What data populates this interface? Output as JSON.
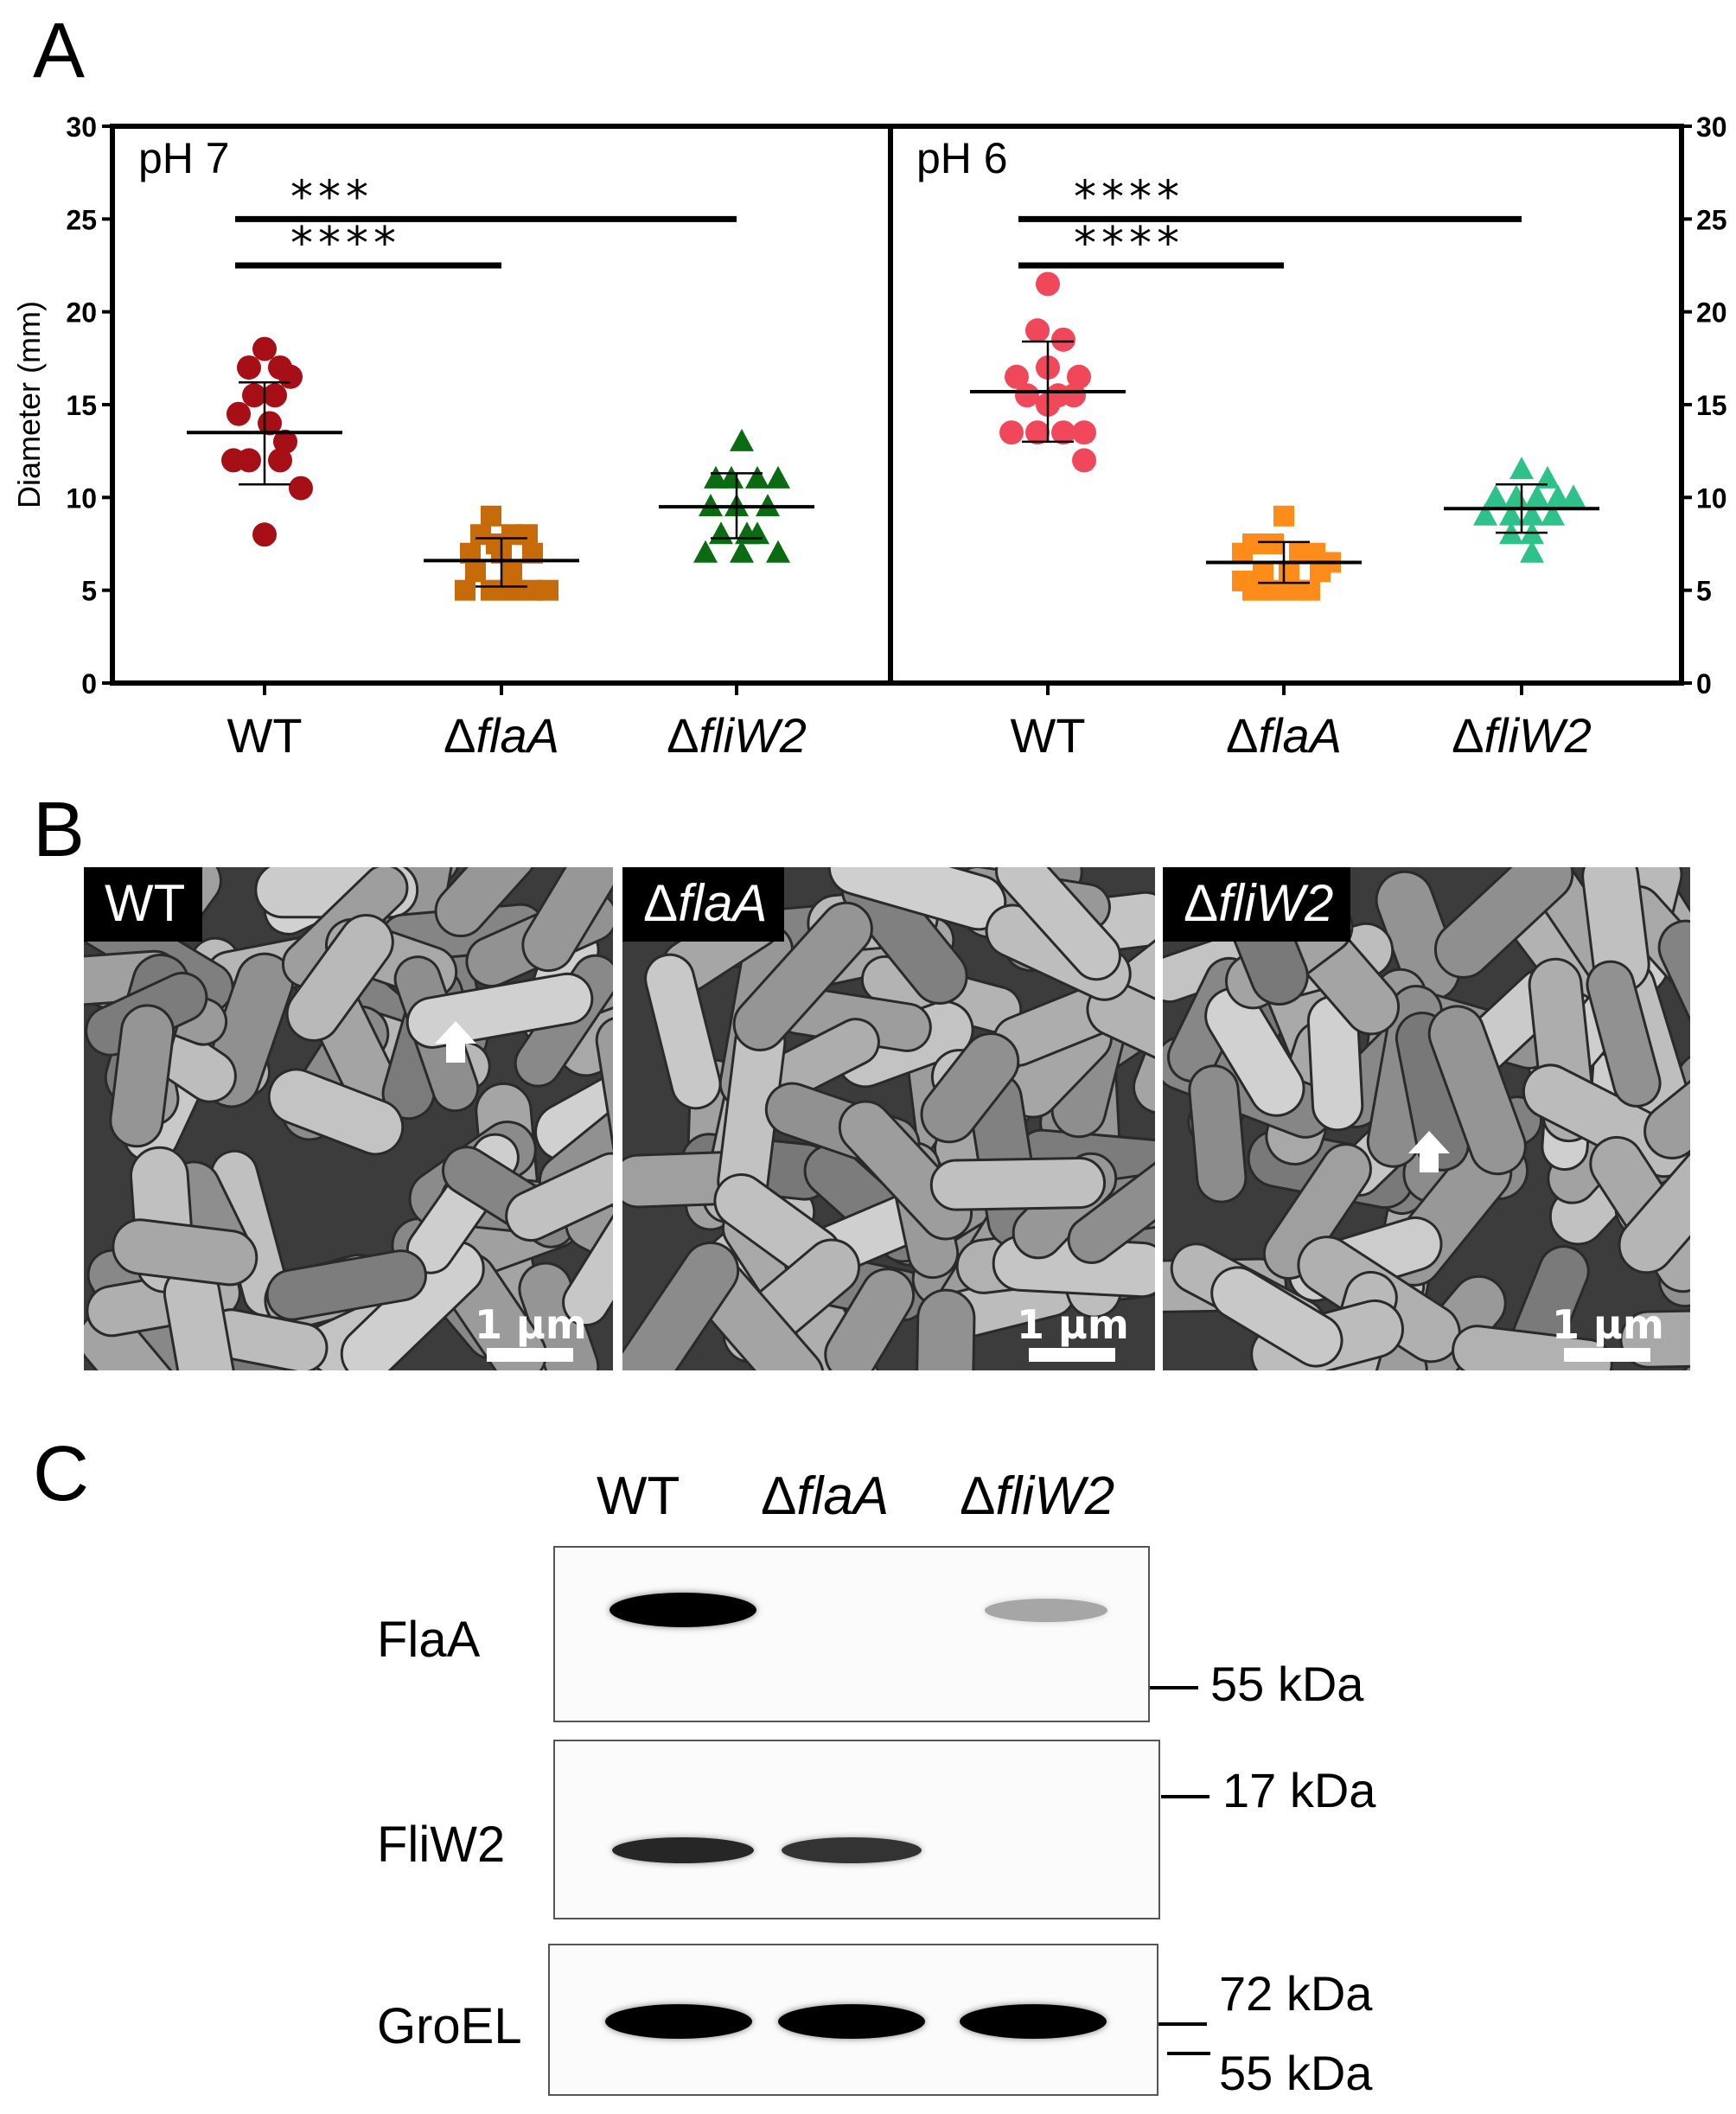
{
  "panel_labels": {
    "a": "A",
    "b": "B",
    "c": "C"
  },
  "chart_data": [
    {
      "type": "scatter",
      "panel": "pH 7",
      "ylabel": "Diameter (mm)",
      "ylim": [
        0,
        30
      ],
      "yticks": [
        "0",
        "5",
        "10",
        "15",
        "20",
        "25",
        "30"
      ],
      "categories": [
        "WT",
        "ΔflaA",
        "ΔfliW2"
      ],
      "series": [
        {
          "category": "WT",
          "color": "#a50f15",
          "marker": "circle",
          "points": [
            [
              0,
              18
            ],
            [
              -0.15,
              17
            ],
            [
              0.15,
              17
            ],
            [
              0.25,
              16.5
            ],
            [
              -0.1,
              15.5
            ],
            [
              0.1,
              15.5
            ],
            [
              -0.25,
              14.5
            ],
            [
              0.05,
              14
            ],
            [
              0.2,
              13
            ],
            [
              -0.3,
              12
            ],
            [
              -0.15,
              12
            ],
            [
              0.15,
              12
            ],
            [
              0.35,
              10.5
            ],
            [
              0,
              8
            ]
          ],
          "mean": 13.5,
          "sd_low": 10.7,
          "sd_high": 16.2
        },
        {
          "category": "ΔflaA",
          "color": "#c66a0a",
          "marker": "square",
          "points": [
            [
              -0.1,
              9
            ],
            [
              -0.2,
              8
            ],
            [
              0.1,
              8
            ],
            [
              0.25,
              8
            ],
            [
              -0.05,
              7.5
            ],
            [
              -0.3,
              7
            ],
            [
              0,
              7
            ],
            [
              0.3,
              7
            ],
            [
              -0.25,
              6
            ],
            [
              0.1,
              6
            ],
            [
              -0.35,
              5
            ],
            [
              -0.1,
              5
            ],
            [
              0.1,
              5
            ],
            [
              0.3,
              5
            ],
            [
              0.45,
              5
            ]
          ],
          "mean": 6.6,
          "sd_low": 5.2,
          "sd_high": 7.8
        },
        {
          "category": "ΔfliW2",
          "color": "#0a6b12",
          "marker": "triangle",
          "points": [
            [
              0.05,
              13
            ],
            [
              -0.2,
              11
            ],
            [
              -0.05,
              11
            ],
            [
              0.2,
              11
            ],
            [
              0.4,
              11
            ],
            [
              -0.25,
              9.5
            ],
            [
              0,
              9.5
            ],
            [
              0.3,
              9.5
            ],
            [
              -0.15,
              8
            ],
            [
              0.1,
              8
            ],
            [
              0.2,
              8
            ],
            [
              0.05,
              7
            ],
            [
              -0.3,
              7
            ],
            [
              0.4,
              7
            ]
          ],
          "mean": 9.5,
          "sd_low": 7.8,
          "sd_high": 11.3
        }
      ],
      "significance": [
        {
          "from": "WT",
          "to": "ΔfliW2",
          "y": 25,
          "label": "***"
        },
        {
          "from": "WT",
          "to": "ΔflaA",
          "y": 22.5,
          "label": "****"
        }
      ]
    },
    {
      "type": "scatter",
      "panel": "pH 6",
      "ylim": [
        0,
        30
      ],
      "yticks": [
        "0",
        "5",
        "10",
        "15",
        "20",
        "25",
        "30"
      ],
      "categories": [
        "WT",
        "ΔflaA",
        "ΔfliW2"
      ],
      "series": [
        {
          "category": "WT",
          "color": "#f0485a",
          "marker": "circle",
          "points": [
            [
              0,
              21.5
            ],
            [
              -0.1,
              19
            ],
            [
              0.15,
              18.5
            ],
            [
              0,
              17
            ],
            [
              -0.3,
              16.5
            ],
            [
              0.3,
              16.5
            ],
            [
              -0.2,
              15.5
            ],
            [
              0.1,
              15.5
            ],
            [
              0.25,
              15.5
            ],
            [
              0,
              15
            ],
            [
              -0.35,
              13.5
            ],
            [
              -0.1,
              13.5
            ],
            [
              0.15,
              13.5
            ],
            [
              0.35,
              13.5
            ],
            [
              0.35,
              12
            ]
          ],
          "mean": 15.7,
          "sd_low": 13.0,
          "sd_high": 18.4
        },
        {
          "category": "ΔflaA",
          "color": "#ff8c1a",
          "marker": "square",
          "points": [
            [
              0,
              9
            ],
            [
              -0.3,
              7.5
            ],
            [
              -0.1,
              7.5
            ],
            [
              0.15,
              7
            ],
            [
              0.3,
              7
            ],
            [
              -0.4,
              7
            ],
            [
              0.45,
              6.5
            ],
            [
              0.35,
              6
            ],
            [
              -0.2,
              6
            ],
            [
              0.05,
              6
            ],
            [
              -0.3,
              5
            ],
            [
              -0.1,
              5
            ],
            [
              0.1,
              5
            ],
            [
              0.25,
              5
            ],
            [
              -0.4,
              5.5
            ]
          ],
          "mean": 6.5,
          "sd_low": 5.4,
          "sd_high": 7.6
        },
        {
          "category": "ΔfliW2",
          "color": "#2ec28a",
          "marker": "triangle",
          "points": [
            [
              0,
              11.5
            ],
            [
              0.25,
              11
            ],
            [
              -0.25,
              10
            ],
            [
              -0.05,
              10
            ],
            [
              0.15,
              10
            ],
            [
              0.35,
              10
            ],
            [
              0.5,
              10
            ],
            [
              -0.35,
              9
            ],
            [
              -0.1,
              9
            ],
            [
              0.1,
              9
            ],
            [
              0.3,
              9
            ],
            [
              -0.1,
              8
            ],
            [
              0.1,
              8
            ],
            [
              0.1,
              7
            ]
          ],
          "mean": 9.4,
          "sd_low": 8.1,
          "sd_high": 10.7
        }
      ],
      "significance": [
        {
          "from": "WT",
          "to": "ΔfliW2",
          "y": 25,
          "label": "****"
        },
        {
          "from": "WT",
          "to": "ΔflaA",
          "y": 22.5,
          "label": "****"
        }
      ]
    }
  ],
  "sem_panels": [
    {
      "label_plain": "WT",
      "label_italic": "",
      "scale": "1 μm",
      "arrow": true
    },
    {
      "label_plain": "Δ",
      "label_italic": "flaA",
      "scale": "1 μm",
      "arrow": false
    },
    {
      "label_plain": "Δ",
      "label_italic": "fliW2",
      "scale": "1 μm",
      "arrow": true
    }
  ],
  "blot": {
    "lanes": [
      {
        "plain": "WT",
        "italic": ""
      },
      {
        "plain": "Δ",
        "italic": "flaA"
      },
      {
        "plain": "Δ",
        "italic": "fliW2"
      }
    ],
    "rows": [
      "FlaA",
      "FliW2",
      "GroEL"
    ],
    "bands": {
      "FlaA": [
        1.0,
        0.0,
        0.35
      ],
      "FliW2": [
        0.85,
        0.8,
        0.0
      ],
      "GroEL": [
        1.0,
        1.0,
        1.0
      ]
    },
    "markers": [
      "55 kDa",
      "17 kDa",
      "72 kDa",
      "55 kDa"
    ]
  }
}
